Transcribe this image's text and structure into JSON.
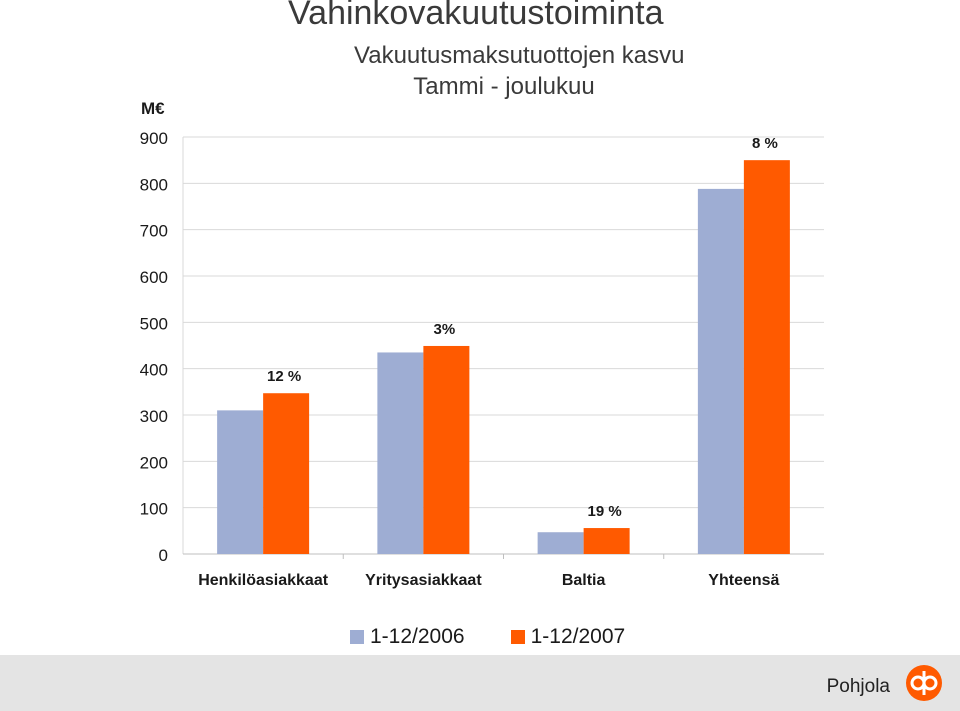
{
  "header": {
    "title": "Vahinkovakuutustoiminta",
    "subtitle": "Vakuutusmaksutuottojen kasvu",
    "subtitle2": "Tammi - joulukuu"
  },
  "chart_data": {
    "type": "bar",
    "ylabel": "M€",
    "ylim": [
      0,
      900
    ],
    "yticks": [
      "0",
      "100",
      "200",
      "300",
      "400",
      "500",
      "600",
      "700",
      "800",
      "900"
    ],
    "grid": true,
    "categories": [
      "Henkilöasiakkaat",
      "Yritysasiakkaat",
      "Baltia",
      "Yhteensä"
    ],
    "series": [
      {
        "name": "1-12/2006",
        "color": "#9eadd3",
        "values": [
          310,
          435,
          47,
          788
        ]
      },
      {
        "name": "1-12/2007",
        "color": "#ff5a00",
        "values": [
          347,
          449,
          56,
          850
        ]
      }
    ],
    "annotations": [
      "12 %",
      "3%",
      "19 %",
      "8 %"
    ],
    "legend_position": "bottom"
  },
  "footer": {
    "brand": "Pohjola",
    "bg_color": "#e4e4e4",
    "logo_color": "#ff5a00"
  }
}
